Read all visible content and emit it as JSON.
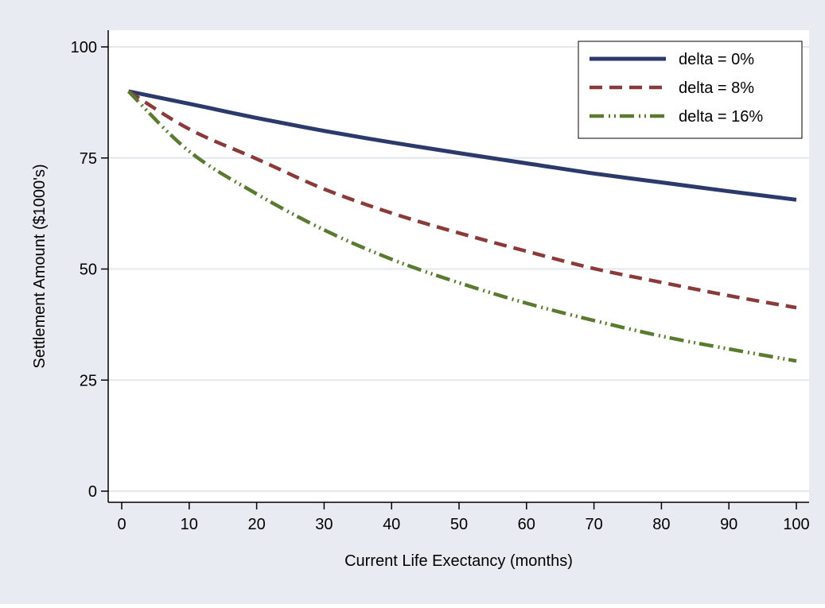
{
  "chart_data": {
    "type": "line",
    "title": "",
    "xlabel": "Current Life Exectancy (months)",
    "ylabel": "Settlement Amount ($1000's)",
    "xlim": [
      0,
      100
    ],
    "ylim": [
      0,
      100
    ],
    "xticks": [
      0,
      10,
      20,
      30,
      40,
      50,
      60,
      70,
      80,
      90,
      100
    ],
    "yticks": [
      0,
      25,
      50,
      75,
      100
    ],
    "xtick_labels": [
      "0",
      "10",
      "20",
      "30",
      "40",
      "50",
      "60",
      "70",
      "80",
      "90",
      "100"
    ],
    "ytick_labels": [
      "0",
      "25",
      "50",
      "75",
      "100"
    ],
    "grid": "horizontal",
    "legend_position": "top-right",
    "x": [
      1,
      10,
      20,
      30,
      40,
      50,
      60,
      70,
      80,
      90,
      100
    ],
    "series": [
      {
        "name": "delta = 0%",
        "color": "#2b3a6b",
        "style": "solid",
        "values": [
          90,
          87.2,
          84.0,
          81.1,
          78.5,
          76.1,
          73.8,
          71.5,
          69.5,
          67.5,
          65.6
        ]
      },
      {
        "name": "delta = 8%",
        "color": "#8b3a3a",
        "style": "dashed",
        "values": [
          90,
          81.5,
          74.8,
          68.0,
          62.6,
          58.1,
          54.0,
          50.1,
          47.0,
          44.0,
          41.3
        ]
      },
      {
        "name": "delta = 16%",
        "color": "#5a7a30",
        "style": "dash-dot-dot",
        "values": [
          90,
          76.5,
          66.9,
          58.8,
          52.2,
          46.9,
          42.3,
          38.4,
          34.9,
          32.0,
          29.3
        ]
      }
    ]
  },
  "colors": {
    "outer_background": "#e8ebf2",
    "plot_background": "#ffffff",
    "grid": "#e3e7ee",
    "axis": "#000000"
  }
}
